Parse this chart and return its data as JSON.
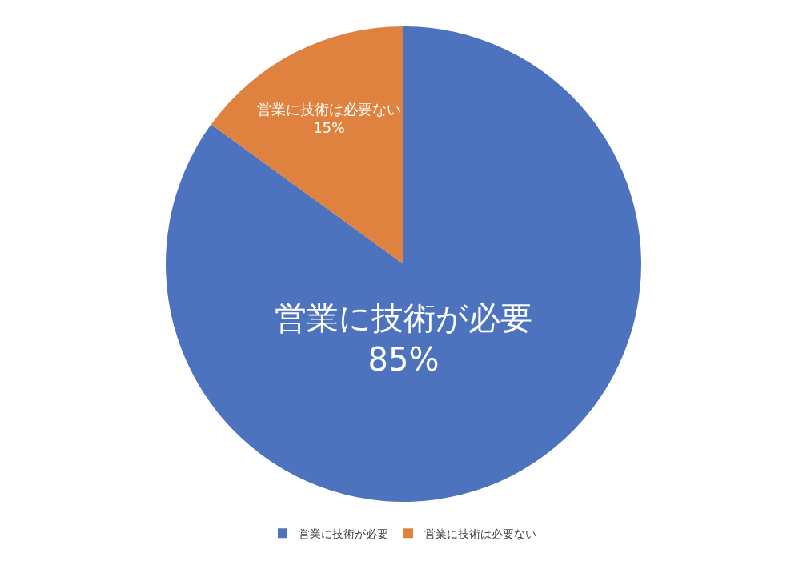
{
  "chart_data": {
    "type": "pie",
    "categories": [
      "営業に技術が必要",
      "営業に技術は必要ない"
    ],
    "values": [
      85,
      15
    ],
    "value_labels": [
      "85%",
      "15%"
    ],
    "colors": [
      "#4e73be",
      "#e0823f"
    ],
    "legend": "bottom"
  }
}
